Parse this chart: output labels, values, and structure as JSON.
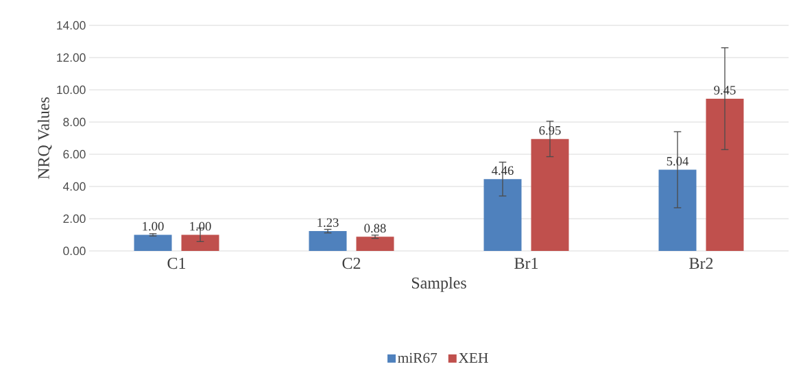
{
  "chart_data": {
    "type": "bar",
    "xlabel": "Samples",
    "ylabel": "NRQ Values",
    "categories": [
      "C1",
      "C2",
      "Br1",
      "Br2"
    ],
    "series": [
      {
        "name": "miR67",
        "color": "#4f81bd",
        "values": [
          1.0,
          1.23,
          4.46,
          5.04
        ],
        "value_labels": [
          "1.00",
          "1.23",
          "4.46",
          "5.04"
        ],
        "errors": [
          0.07,
          0.11,
          1.05,
          2.36
        ]
      },
      {
        "name": "XEH",
        "color": "#c0504d",
        "values": [
          1.0,
          0.88,
          6.95,
          9.45
        ],
        "value_labels": [
          "1.00",
          "0.88",
          "6.95",
          "9.45"
        ],
        "errors": [
          0.42,
          0.1,
          1.1,
          3.16
        ]
      }
    ],
    "ylim": [
      0,
      14
    ],
    "yticks": [
      {
        "value": 0,
        "label": "0.00"
      },
      {
        "value": 2,
        "label": "2.00"
      },
      {
        "value": 4,
        "label": "4.00"
      },
      {
        "value": 6,
        "label": "6.00"
      },
      {
        "value": 8,
        "label": "8.00"
      },
      {
        "value": 10,
        "label": "10.00"
      },
      {
        "value": 12,
        "label": "12.00"
      },
      {
        "value": 14,
        "label": "14.00"
      }
    ],
    "grid": "y",
    "legend": "bottom"
  }
}
